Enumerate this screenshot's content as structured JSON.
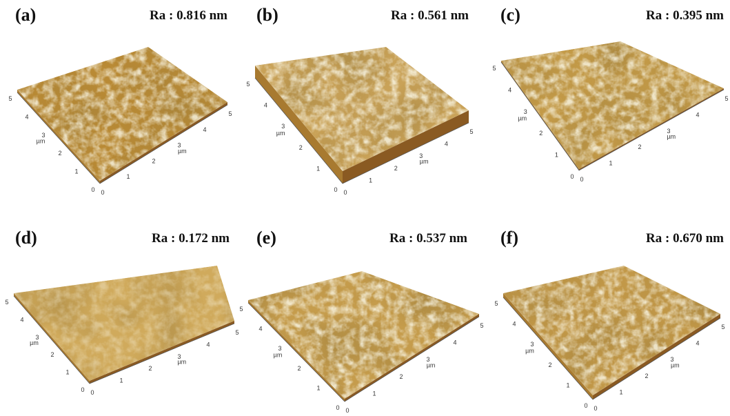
{
  "figure": {
    "panels": [
      {
        "label": "(a)",
        "ra": "Ra : 0.816 nm",
        "color": "#b98a35"
      },
      {
        "label": "(b)",
        "ra": "Ra : 0.561 nm",
        "color": "#c9a258"
      },
      {
        "label": "(c)",
        "ra": "Ra : 0.395 nm",
        "color": "#c39a48"
      },
      {
        "label": "(d)",
        "ra": "Ra : 0.172 nm",
        "color": "#d0aa5c"
      },
      {
        "label": "(e)",
        "ra": "Ra : 0.537 nm",
        "color": "#c59c4c"
      },
      {
        "label": "(f)",
        "ra": "Ra : 0.670 nm",
        "color": "#c29848"
      }
    ],
    "axis_ticks": [
      "0",
      "1",
      "2",
      "3",
      "4",
      "5"
    ],
    "axis_unit": "µm"
  }
}
